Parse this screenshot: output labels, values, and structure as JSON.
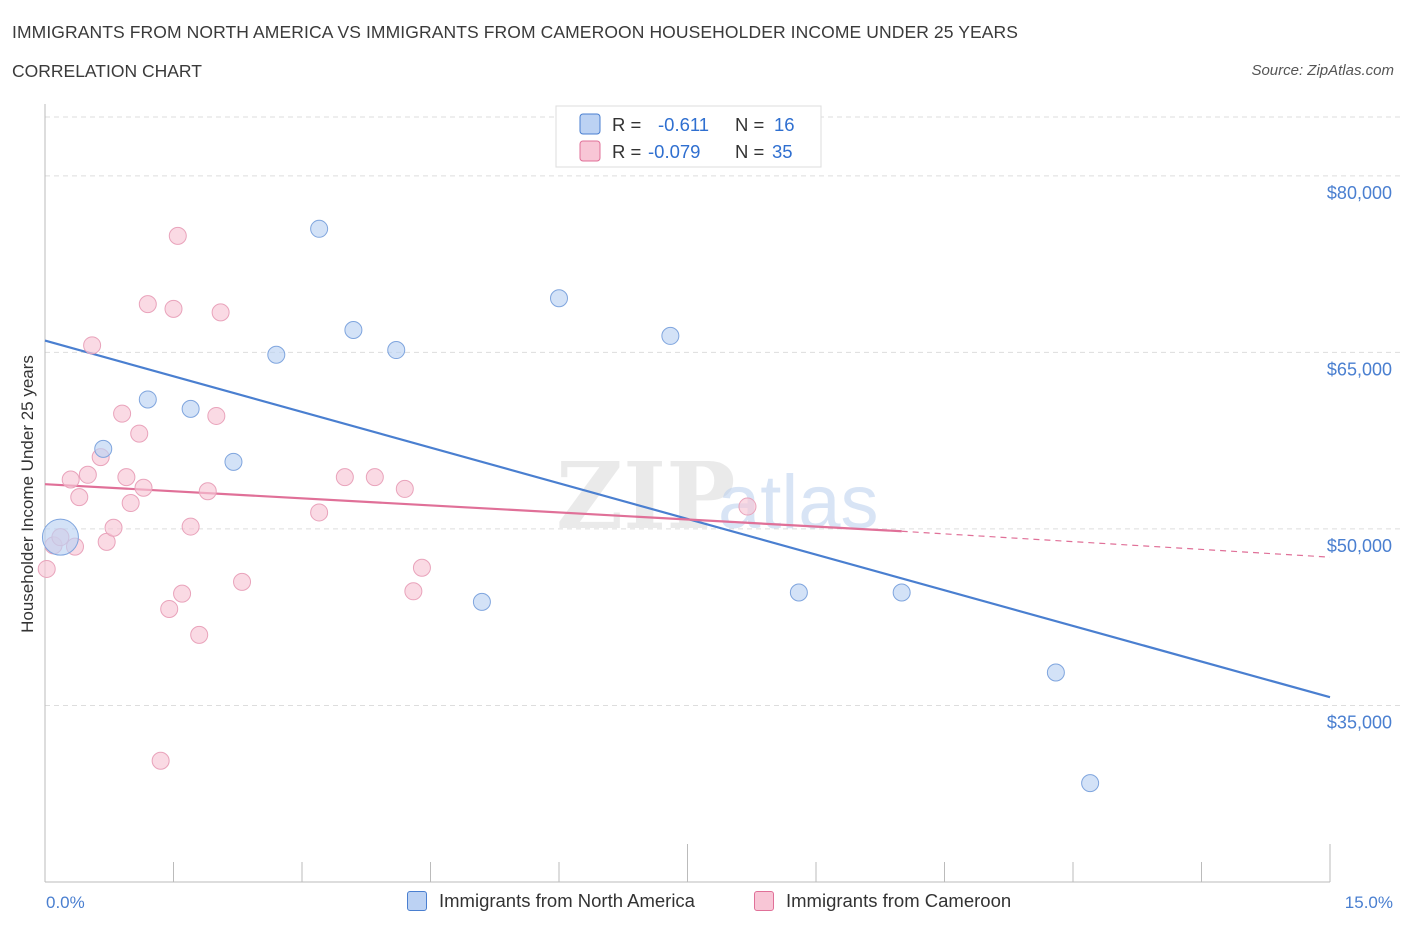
{
  "header": {
    "title": "IMMIGRANTS FROM NORTH AMERICA VS IMMIGRANTS FROM CAMEROON HOUSEHOLDER INCOME UNDER 25 YEARS",
    "subtitle": "CORRELATION CHART",
    "source": "Source: ZipAtlas.com"
  },
  "watermark": {
    "part1": "ZIP",
    "part2": "atlas"
  },
  "legend": {
    "rows": [
      {
        "r_label": "R =",
        "r_value": "-0.611",
        "n_label": "N =",
        "n_value": "16"
      },
      {
        "r_label": "R =",
        "r_value": "-0.079",
        "n_label": "N =",
        "n_value": "35"
      }
    ]
  },
  "colors": {
    "north_america": "#4a7fd0",
    "north_america_fill": "#bcd2f3",
    "cameroon": "#e07098",
    "cameroon_fill": "#f8c6d6",
    "tick_label": "#4a7fd0",
    "grid": "#dddddd"
  },
  "chart_data": {
    "type": "scatter",
    "title": "IMMIGRANTS FROM NORTH AMERICA VS IMMIGRANTS FROM CAMEROON HOUSEHOLDER INCOME UNDER 25 YEARS",
    "xlabel": "",
    "ylabel": "Householder Income Under 25 years",
    "xlim": [
      0,
      15
    ],
    "ylim": [
      20000,
      85000
    ],
    "x_tick_labels": [
      "0.0%",
      "15.0%"
    ],
    "y_ticks": [
      35000,
      50000,
      65000,
      80000
    ],
    "y_tick_labels": [
      "$35,000",
      "$50,000",
      "$65,000",
      "$80,000"
    ],
    "grid": true,
    "legend_position": "top-center",
    "series": [
      {
        "name": "Immigrants from North America",
        "color": "#4a7fd0",
        "points": [
          {
            "x": 0.18,
            "y": 49300,
            "size": "large"
          },
          {
            "x": 0.68,
            "y": 56800
          },
          {
            "x": 1.2,
            "y": 61000
          },
          {
            "x": 1.7,
            "y": 60200
          },
          {
            "x": 2.2,
            "y": 55700
          },
          {
            "x": 2.7,
            "y": 64800
          },
          {
            "x": 3.2,
            "y": 75500
          },
          {
            "x": 3.6,
            "y": 66900
          },
          {
            "x": 4.1,
            "y": 65200
          },
          {
            "x": 5.1,
            "y": 43800
          },
          {
            "x": 6.0,
            "y": 69600
          },
          {
            "x": 7.3,
            "y": 66400
          },
          {
            "x": 8.8,
            "y": 44600
          },
          {
            "x": 10.0,
            "y": 44600
          },
          {
            "x": 11.8,
            "y": 37800
          },
          {
            "x": 12.2,
            "y": 28400
          }
        ],
        "trend": {
          "x": [
            0,
            15
          ],
          "y": [
            66000,
            35700
          ]
        }
      },
      {
        "name": "Immigrants from Cameroon",
        "color": "#e07098",
        "points": [
          {
            "x": 0.02,
            "y": 46600
          },
          {
            "x": 0.1,
            "y": 48600
          },
          {
            "x": 0.18,
            "y": 49300
          },
          {
            "x": 0.3,
            "y": 54200
          },
          {
            "x": 0.35,
            "y": 48500
          },
          {
            "x": 0.4,
            "y": 52700
          },
          {
            "x": 0.5,
            "y": 54600
          },
          {
            "x": 0.55,
            "y": 65600
          },
          {
            "x": 0.65,
            "y": 56100
          },
          {
            "x": 0.72,
            "y": 48900
          },
          {
            "x": 0.8,
            "y": 50100
          },
          {
            "x": 0.9,
            "y": 59800
          },
          {
            "x": 0.95,
            "y": 54400
          },
          {
            "x": 1.0,
            "y": 52200
          },
          {
            "x": 1.1,
            "y": 58100
          },
          {
            "x": 1.15,
            "y": 53500
          },
          {
            "x": 1.2,
            "y": 69100
          },
          {
            "x": 1.35,
            "y": 30300
          },
          {
            "x": 1.45,
            "y": 43200
          },
          {
            "x": 1.5,
            "y": 68700
          },
          {
            "x": 1.55,
            "y": 74900
          },
          {
            "x": 1.6,
            "y": 44500
          },
          {
            "x": 1.7,
            "y": 50200
          },
          {
            "x": 1.8,
            "y": 41000
          },
          {
            "x": 1.9,
            "y": 53200
          },
          {
            "x": 2.0,
            "y": 59600
          },
          {
            "x": 2.05,
            "y": 68400
          },
          {
            "x": 2.3,
            "y": 45500
          },
          {
            "x": 3.2,
            "y": 51400
          },
          {
            "x": 3.5,
            "y": 54400
          },
          {
            "x": 3.85,
            "y": 54400
          },
          {
            "x": 4.2,
            "y": 53400
          },
          {
            "x": 4.3,
            "y": 44700
          },
          {
            "x": 4.4,
            "y": 46700
          },
          {
            "x": 8.2,
            "y": 51900
          }
        ],
        "trend": {
          "x": [
            0,
            10.0
          ],
          "y": [
            53800,
            49800
          ]
        },
        "trend_extension": {
          "x": [
            10.0,
            15
          ],
          "y": [
            49800,
            47600
          ]
        }
      }
    ]
  },
  "bottom_legend": {
    "items": [
      {
        "label": "Immigrants from North America"
      },
      {
        "label": "Immigrants from Cameroon"
      }
    ]
  }
}
